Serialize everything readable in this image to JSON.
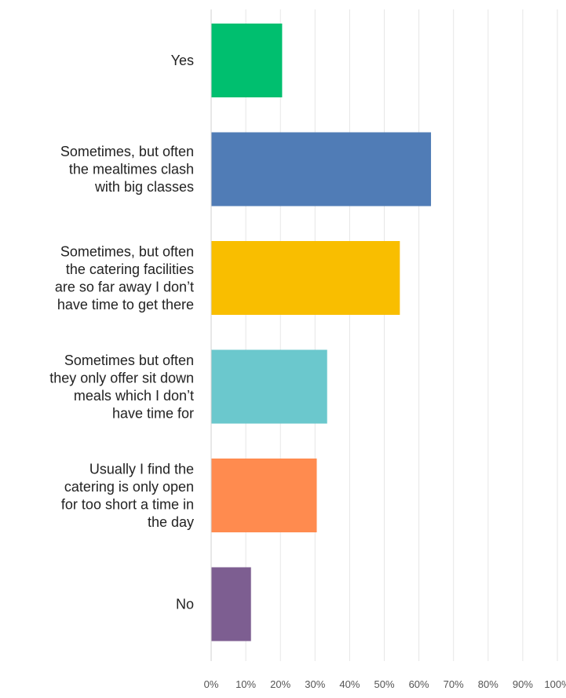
{
  "chart_data": {
    "type": "bar",
    "orientation": "horizontal",
    "categories": [
      [
        "Yes"
      ],
      [
        "Sometimes, but often",
        "the mealtimes clash",
        "with big classes"
      ],
      [
        "Sometimes, but often",
        "the catering facilities",
        "are so far away I don’t",
        "have time to get there"
      ],
      [
        "Sometimes but often",
        "they only offer sit down",
        "meals which I don’t",
        "have time for"
      ],
      [
        "Usually I find the",
        "catering is only open",
        "for too short a time in",
        "the day"
      ],
      [
        "No"
      ]
    ],
    "values": [
      20.5,
      63.5,
      54.5,
      33.5,
      30.5,
      11.5
    ],
    "colors": [
      "#00bf6f",
      "#507cb6",
      "#f9be00",
      "#6bc8cd",
      "#ff8b4f",
      "#7d5e91"
    ],
    "x_ticks": [
      "0%",
      "10%",
      "20%",
      "30%",
      "40%",
      "50%",
      "60%",
      "70%",
      "80%",
      "90%",
      "100%"
    ],
    "xlim": [
      0,
      100
    ],
    "grid": true,
    "title": "",
    "xlabel": "",
    "ylabel": ""
  }
}
